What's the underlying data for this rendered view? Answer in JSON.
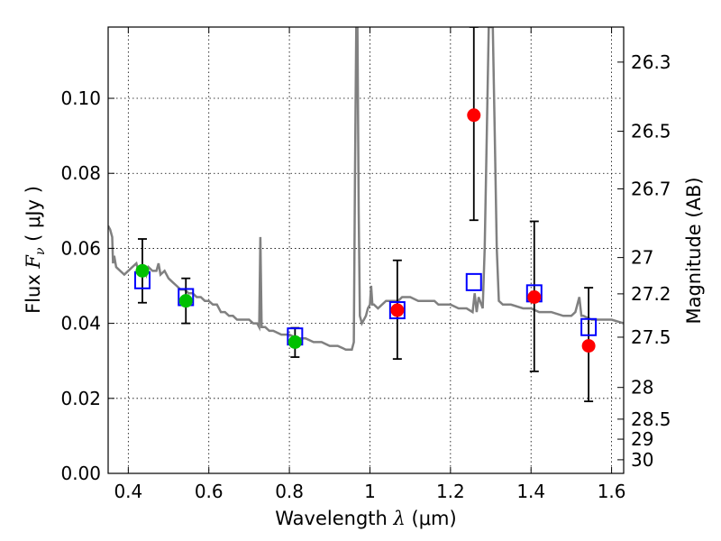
{
  "chart_data": {
    "type": "scatter",
    "title": "",
    "xlabel": {
      "pre": "Wavelength  ",
      "sym": "λ",
      "post": " (μm)"
    },
    "ylabel": {
      "pre": "Flux  ",
      "sym": "F",
      "sub": "ν",
      "post": "  ( μJy )"
    },
    "y2label": "Magnitude (AB)",
    "xlim": [
      0.35,
      1.63
    ],
    "ylim": [
      0.0,
      0.119
    ],
    "grid": true,
    "x_ticks": [
      {
        "value": 0.4,
        "label": "0.4"
      },
      {
        "value": 0.6,
        "label": "0.6"
      },
      {
        "value": 0.8,
        "label": "0.8"
      },
      {
        "value": 1.0,
        "label": "1"
      },
      {
        "value": 1.2,
        "label": "1.2"
      },
      {
        "value": 1.4,
        "label": "1.4"
      },
      {
        "value": 1.6,
        "label": "1.6"
      }
    ],
    "y_ticks": [
      {
        "value": 0.0,
        "label": "0.00"
      },
      {
        "value": 0.02,
        "label": "0.02"
      },
      {
        "value": 0.04,
        "label": "0.04"
      },
      {
        "value": 0.06,
        "label": "0.06"
      },
      {
        "value": 0.08,
        "label": "0.08"
      },
      {
        "value": 0.1,
        "label": "0.10"
      }
    ],
    "mag_ticks": [
      {
        "value": 26.3,
        "label": "26.3"
      },
      {
        "value": 26.5,
        "label": "26.5"
      },
      {
        "value": 26.7,
        "label": "26.7"
      },
      {
        "value": 27.0,
        "label": "27"
      },
      {
        "value": 27.2,
        "label": "27.2"
      },
      {
        "value": 27.5,
        "label": "27.5"
      },
      {
        "value": 28.0,
        "label": "28"
      },
      {
        "value": 28.5,
        "label": "28.5"
      },
      {
        "value": 29.0,
        "label": "29"
      },
      {
        "value": 30.0,
        "label": "30"
      }
    ],
    "template_spectrum": {
      "color": "#808080",
      "points": [
        [
          0.35,
          0.066
        ],
        [
          0.355,
          0.065
        ],
        [
          0.36,
          0.063
        ],
        [
          0.362,
          0.056
        ],
        [
          0.365,
          0.058
        ],
        [
          0.37,
          0.055
        ],
        [
          0.38,
          0.054
        ],
        [
          0.39,
          0.053
        ],
        [
          0.4,
          0.054
        ],
        [
          0.41,
          0.055
        ],
        [
          0.42,
          0.056
        ],
        [
          0.425,
          0.054
        ],
        [
          0.43,
          0.055
        ],
        [
          0.44,
          0.055
        ],
        [
          0.445,
          0.053
        ],
        [
          0.45,
          0.055
        ],
        [
          0.46,
          0.054
        ],
        [
          0.47,
          0.054
        ],
        [
          0.475,
          0.056
        ],
        [
          0.48,
          0.053
        ],
        [
          0.49,
          0.054
        ],
        [
          0.5,
          0.052
        ],
        [
          0.51,
          0.051
        ],
        [
          0.52,
          0.05
        ],
        [
          0.53,
          0.049
        ],
        [
          0.54,
          0.049
        ],
        [
          0.55,
          0.048
        ],
        [
          0.56,
          0.048
        ],
        [
          0.57,
          0.047
        ],
        [
          0.58,
          0.047
        ],
        [
          0.59,
          0.046
        ],
        [
          0.6,
          0.046
        ],
        [
          0.61,
          0.045
        ],
        [
          0.62,
          0.045
        ],
        [
          0.63,
          0.043
        ],
        [
          0.64,
          0.043
        ],
        [
          0.65,
          0.042
        ],
        [
          0.66,
          0.042
        ],
        [
          0.67,
          0.041
        ],
        [
          0.68,
          0.041
        ],
        [
          0.7,
          0.041
        ],
        [
          0.71,
          0.04
        ],
        [
          0.72,
          0.04
        ],
        [
          0.725,
          0.039
        ],
        [
          0.728,
          0.063
        ],
        [
          0.731,
          0.039
        ],
        [
          0.74,
          0.039
        ],
        [
          0.75,
          0.038
        ],
        [
          0.76,
          0.038
        ],
        [
          0.78,
          0.037
        ],
        [
          0.8,
          0.037
        ],
        [
          0.82,
          0.036
        ],
        [
          0.84,
          0.036
        ],
        [
          0.86,
          0.035
        ],
        [
          0.88,
          0.035
        ],
        [
          0.9,
          0.034
        ],
        [
          0.92,
          0.034
        ],
        [
          0.94,
          0.033
        ],
        [
          0.955,
          0.033
        ],
        [
          0.96,
          0.035
        ],
        [
          0.963,
          0.08
        ],
        [
          0.966,
          0.119
        ],
        [
          0.969,
          0.119
        ],
        [
          0.972,
          0.07
        ],
        [
          0.975,
          0.042
        ],
        [
          0.98,
          0.04
        ],
        [
          0.985,
          0.041
        ],
        [
          0.99,
          0.042
        ],
        [
          0.995,
          0.044
        ],
        [
          1.0,
          0.045
        ],
        [
          1.003,
          0.05
        ],
        [
          1.006,
          0.045
        ],
        [
          1.01,
          0.045
        ],
        [
          1.02,
          0.044
        ],
        [
          1.03,
          0.045
        ],
        [
          1.04,
          0.046
        ],
        [
          1.05,
          0.046
        ],
        [
          1.07,
          0.046
        ],
        [
          1.08,
          0.047
        ],
        [
          1.09,
          0.047
        ],
        [
          1.1,
          0.047
        ],
        [
          1.12,
          0.046
        ],
        [
          1.14,
          0.046
        ],
        [
          1.16,
          0.046
        ],
        [
          1.17,
          0.045
        ],
        [
          1.18,
          0.045
        ],
        [
          1.2,
          0.045
        ],
        [
          1.22,
          0.044
        ],
        [
          1.24,
          0.044
        ],
        [
          1.255,
          0.043
        ],
        [
          1.26,
          0.048
        ],
        [
          1.265,
          0.043
        ],
        [
          1.27,
          0.047
        ],
        [
          1.28,
          0.044
        ],
        [
          1.285,
          0.06
        ],
        [
          1.29,
          0.09
        ],
        [
          1.295,
          0.119
        ],
        [
          1.305,
          0.119
        ],
        [
          1.31,
          0.09
        ],
        [
          1.315,
          0.06
        ],
        [
          1.32,
          0.046
        ],
        [
          1.33,
          0.045
        ],
        [
          1.35,
          0.045
        ],
        [
          1.38,
          0.044
        ],
        [
          1.4,
          0.044
        ],
        [
          1.42,
          0.043
        ],
        [
          1.45,
          0.043
        ],
        [
          1.48,
          0.042
        ],
        [
          1.5,
          0.042
        ],
        [
          1.51,
          0.043
        ],
        [
          1.52,
          0.047
        ],
        [
          1.525,
          0.042
        ],
        [
          1.53,
          0.042
        ],
        [
          1.55,
          0.041
        ],
        [
          1.58,
          0.041
        ],
        [
          1.6,
          0.041
        ],
        [
          1.63,
          0.04
        ]
      ]
    },
    "series": [
      {
        "marker": "circle",
        "color": "#00c000",
        "points": [
          {
            "x": 0.435,
            "y": 0.054,
            "yerr": [
              0.0455,
              0.0625
            ]
          },
          {
            "x": 0.543,
            "y": 0.046,
            "yerr": [
              0.04,
              0.052
            ]
          },
          {
            "x": 0.814,
            "y": 0.035,
            "yerr": [
              0.031,
              0.0388
            ]
          }
        ]
      },
      {
        "marker": "circle",
        "color": "#ff0000",
        "points": [
          {
            "x": 1.068,
            "y": 0.0435,
            "yerr": [
              0.0305,
              0.0568
            ]
          },
          {
            "x": 1.258,
            "y": 0.0955,
            "yerr": [
              0.0675,
              0.119
            ]
          },
          {
            "x": 1.408,
            "y": 0.047,
            "yerr": [
              0.0272,
              0.0672
            ]
          },
          {
            "x": 1.543,
            "y": 0.034,
            "yerr": [
              0.0192,
              0.0495
            ]
          }
        ]
      },
      {
        "marker": "open-square",
        "color": "#0000ff",
        "points": [
          {
            "x": 0.435,
            "y": 0.0515
          },
          {
            "x": 0.543,
            "y": 0.047
          },
          {
            "x": 0.814,
            "y": 0.0365
          },
          {
            "x": 1.068,
            "y": 0.0435
          },
          {
            "x": 1.258,
            "y": 0.051
          },
          {
            "x": 1.408,
            "y": 0.048
          },
          {
            "x": 1.543,
            "y": 0.039
          }
        ]
      }
    ]
  }
}
